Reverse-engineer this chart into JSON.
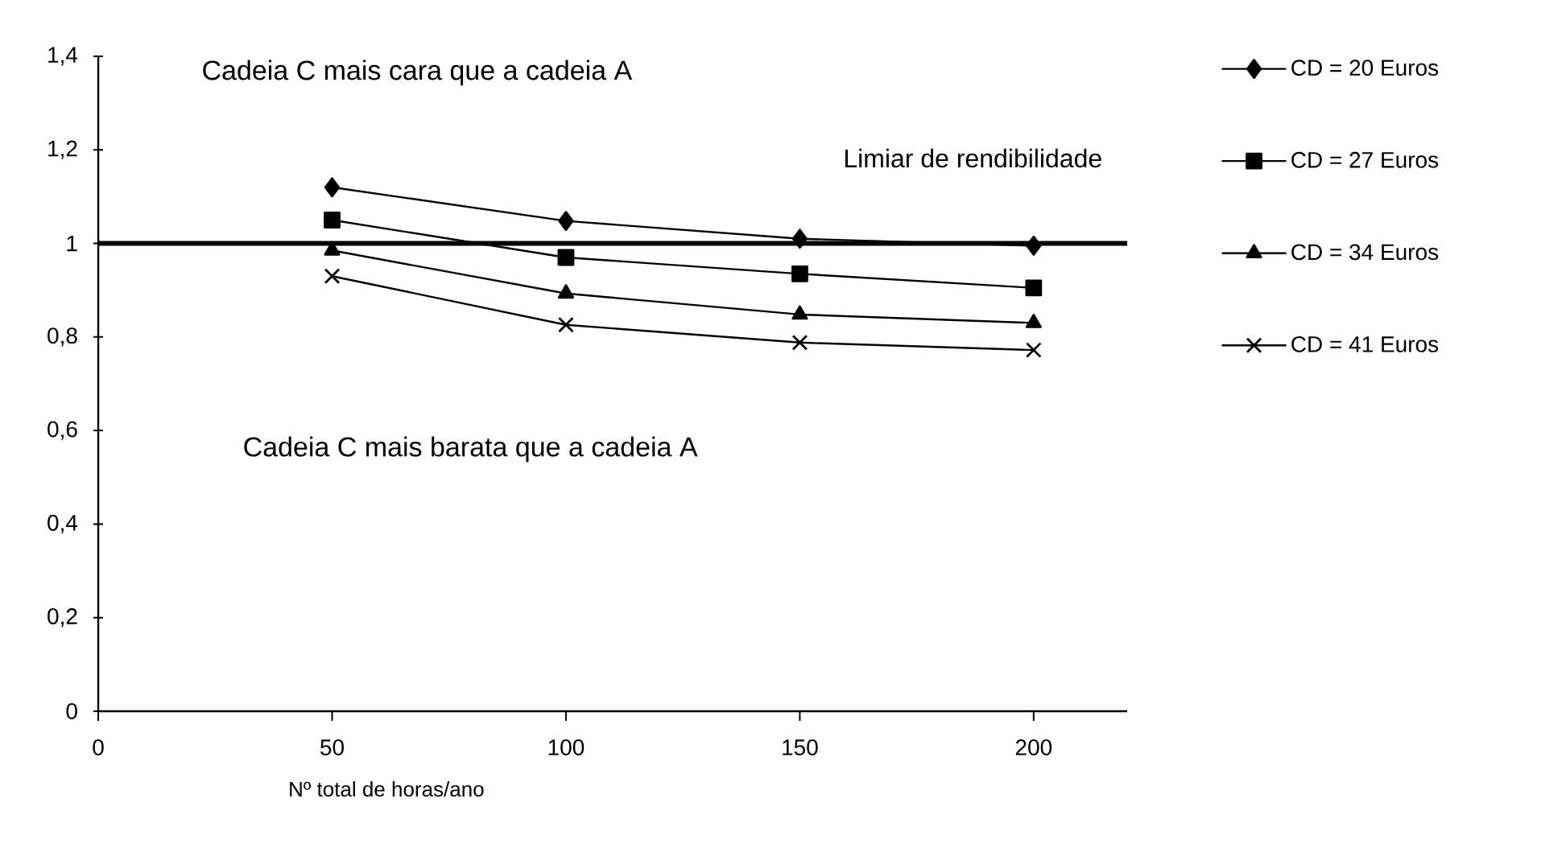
{
  "chart_data": {
    "type": "line",
    "x": [
      50,
      100,
      150,
      200
    ],
    "series": [
      {
        "name": "CD = 20 Euros",
        "color": "#000000",
        "marker": "diamond",
        "values": [
          1.12,
          1.048,
          1.01,
          0.995
        ]
      },
      {
        "name": "CD = 27 Euros",
        "color": "#000000",
        "marker": "square",
        "values": [
          1.05,
          0.97,
          0.935,
          0.905
        ]
      },
      {
        "name": "CD = 34 Euros",
        "color": "#000000",
        "marker": "triangle",
        "values": [
          0.985,
          0.893,
          0.848,
          0.83
        ]
      },
      {
        "name": "CD = 41 Euros",
        "color": "#000000",
        "marker": "cross",
        "values": [
          0.93,
          0.826,
          0.788,
          0.772
        ]
      }
    ],
    "xlabel": "Nº total de horas/ano",
    "xlim": [
      0,
      220
    ],
    "xticks": [
      0,
      50,
      100,
      150,
      200
    ],
    "ylim": [
      0,
      1.4
    ],
    "yticks": [
      {
        "value": 0,
        "label": "0"
      },
      {
        "value": 0.2,
        "label": "0,2"
      },
      {
        "value": 0.4,
        "label": "0,4"
      },
      {
        "value": 0.6,
        "label": "0,6"
      },
      {
        "value": 0.8,
        "label": "0,8"
      },
      {
        "value": 1,
        "label": "1"
      },
      {
        "value": 1.2,
        "label": "1,2"
      },
      {
        "value": 1.4,
        "label": "1,4"
      }
    ],
    "ref_lines": [
      {
        "axis": "y",
        "value": 1,
        "label": "Limiar de rendibilidade",
        "color": "#000000"
      }
    ],
    "annotations": [
      "Cadeia C mais cara que a cadeia A",
      "Cadeia C mais barata que a cadeia A"
    ],
    "legend": "right",
    "grid": false,
    "line_style": "solid"
  }
}
